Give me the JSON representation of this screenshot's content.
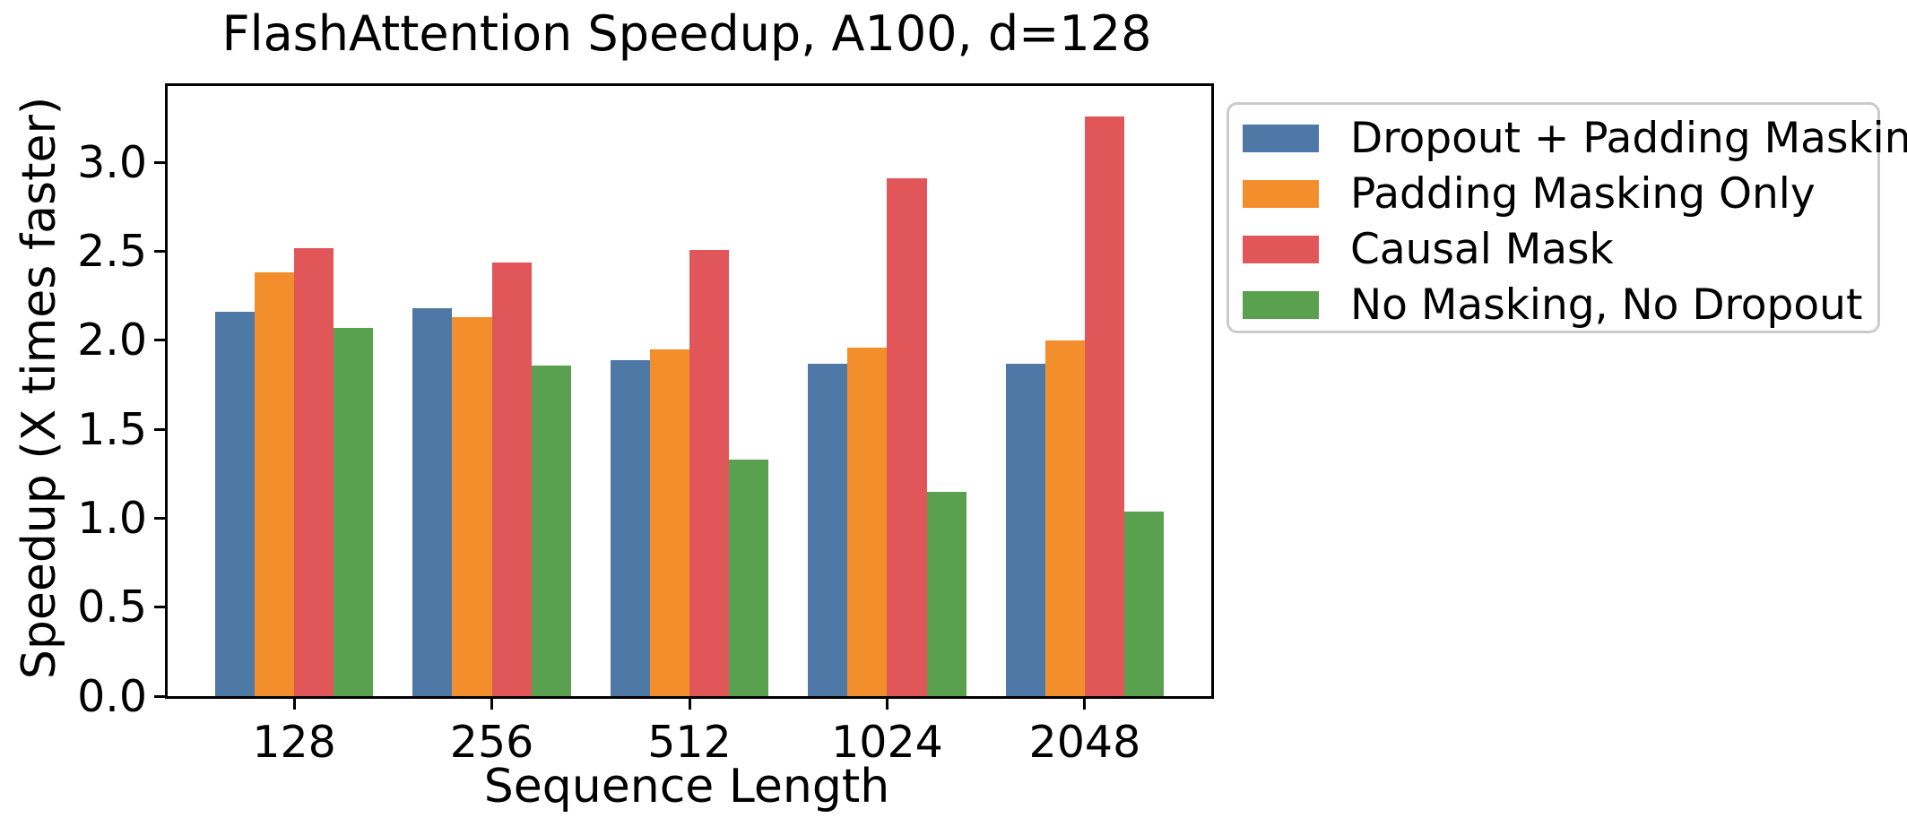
{
  "chart_data": {
    "type": "bar",
    "title": "FlashAttention Speedup, A100, d=128",
    "xlabel": "Sequence Length",
    "ylabel": "Speedup (X times faster)",
    "categories": [
      "128",
      "256",
      "512",
      "1024",
      "2048"
    ],
    "series": [
      {
        "name": "Dropout + Padding Masking",
        "color": "#4E79A7",
        "values": [
          2.16,
          2.18,
          1.89,
          1.87,
          1.87
        ]
      },
      {
        "name": "Padding Masking Only",
        "color": "#F28E2B",
        "values": [
          2.38,
          2.13,
          1.95,
          1.96,
          2.0
        ]
      },
      {
        "name": "Causal Mask",
        "color": "#E15759",
        "values": [
          2.52,
          2.44,
          2.51,
          2.91,
          3.26
        ]
      },
      {
        "name": "No Masking, No Dropout",
        "color": "#59A14F",
        "values": [
          2.07,
          1.86,
          1.33,
          1.15,
          1.04
        ]
      }
    ],
    "yticks": [
      "0.0",
      "0.5",
      "1.0",
      "1.5",
      "2.0",
      "2.5",
      "3.0"
    ],
    "ytick_values": [
      0.0,
      0.5,
      1.0,
      1.5,
      2.0,
      2.5,
      3.0
    ],
    "ylim": [
      0,
      3.43
    ],
    "xlim": [
      -0.64,
      4.64
    ],
    "bar_width_units": 0.2,
    "grid": false,
    "legend_position": "upper-right-outside",
    "axis_color": "#000000"
  }
}
